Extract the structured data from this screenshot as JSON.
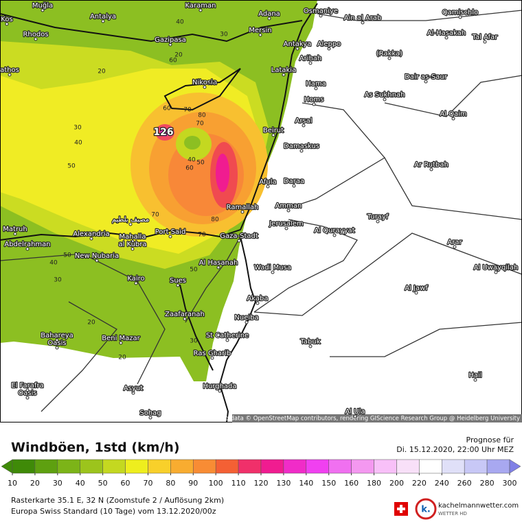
{
  "map": {
    "places": [
      "Muğla",
      "Karaman",
      "Adana",
      "Osmaniye",
      "Antalya",
      "Kos",
      "Ain al Arab",
      "Qamischlo",
      "Rhodos",
      "Gazipasa",
      "Mersin",
      "Al-Hasakah",
      "Tal Afar",
      "Antakya",
      "Aleppo",
      "Arihah",
      "(Rakka)",
      "Latakia",
      "Dair as-Saur",
      "athos",
      "Nikosia",
      "Hama",
      "As Sukhnah",
      "Homs",
      "Al Qaim",
      "Arsal",
      "Beirut",
      "Damaskus",
      "Ar Rutbah",
      "Afula",
      "Daraa",
      "Ramallah",
      "Amman",
      "Turayf",
      "Jerusalem",
      "Al Qurayyat",
      "مصيف بلطيم",
      "Matruh",
      "Alexandria",
      "Port Said",
      "Gaza-Stadt",
      "Abdelrahman",
      "Mahalla",
      "al Kubra",
      "Arar",
      "New Nubaria",
      "Al Hasanah",
      "Wadi Musa",
      "Al Uwayqilah",
      "Kairo",
      "Sues",
      "Al Jawf",
      "Akaba",
      "Zaafaranah",
      "Nueiba",
      "Bahareya",
      "Oasis",
      "Beni Mazar",
      "St Catherine",
      "Tabuk",
      "Ras Gharib",
      "Hail",
      "El Farafra",
      "Oasis",
      "Asyut",
      "Hurghada",
      "Sohag",
      "Al Ula"
    ],
    "contour_labels": [
      20,
      30,
      40,
      50,
      20,
      30,
      60,
      40,
      60,
      70,
      80,
      70,
      40,
      50,
      60,
      70,
      80,
      70,
      50,
      50,
      40,
      30,
      20,
      30,
      20,
      40
    ],
    "peak_label": 126,
    "attribution": "Map data © OpenStreetMap contributors, rendering GIScience Research Group @ Heidelberg University"
  },
  "legend": {
    "title": "Windböen, 1std (km/h)",
    "forecast_label": "Prognose für",
    "forecast_time": "Di. 15.12.2020, 22:00 Uhr MEZ",
    "values": [
      10,
      20,
      30,
      40,
      50,
      60,
      70,
      80,
      90,
      100,
      110,
      120,
      130,
      140,
      150,
      160,
      180,
      200,
      220,
      240,
      260,
      280,
      300
    ],
    "colors": [
      "#3f8a08",
      "#5ea010",
      "#7cb418",
      "#9cc41c",
      "#c4d820",
      "#eeee1e",
      "#f8d02a",
      "#f8ac30",
      "#f88c34",
      "#f46034",
      "#f0306a",
      "#f01c90",
      "#f02cc8",
      "#f040f0",
      "#f070f0",
      "#f498f0",
      "#f8c0f8",
      "#f8e0f8",
      "#ffffff",
      "#e0e0f8",
      "#c8c8f6",
      "#a8a8f0",
      "#8080e6"
    ]
  },
  "footer": {
    "line1": "Rasterkarte 35.1 E, 32 N (Zoomstufe 2 / Auflösung 2km)",
    "line2": "Europa Swiss Standard (10 Tage) vom 13.12.2020/00z",
    "brand": "kachelmannwetter.com",
    "brand_sub": "WETTER HD"
  }
}
